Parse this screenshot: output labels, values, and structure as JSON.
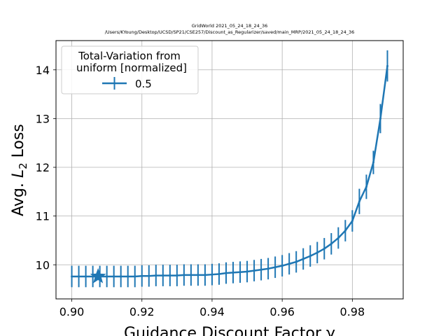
{
  "chart_data": {
    "type": "line",
    "title_lines": [
      "GridWorld  2021_05_24_18_24_36",
      "/Users/KYoung/Desktop/UCSD/SP21/CSE257/Discount_as_Regularizer/saved/main_MRP/2021_05_24_18_24_36"
    ],
    "xlabel": "Guidance Discount Factor γ",
    "ylabel_prefix": "Avg. ",
    "ylabel_var": "L",
    "ylabel_sub": "2",
    "ylabel_suffix": " Loss",
    "xlim": [
      0.8955,
      0.9945
    ],
    "ylim": [
      9.3,
      14.6
    ],
    "xticks": [
      0.9,
      0.92,
      0.94,
      0.96,
      0.98
    ],
    "xtick_labels": [
      "0.90",
      "0.92",
      "0.94",
      "0.96",
      "0.98"
    ],
    "yticks": [
      10,
      11,
      12,
      13,
      14
    ],
    "ytick_labels": [
      "10",
      "11",
      "12",
      "13",
      "14"
    ],
    "grid": true,
    "legend": {
      "title_line1": "Total-Variation from",
      "title_line2": "uniform [normalized]",
      "placement": "upper-left"
    },
    "series": [
      {
        "name": "0.5",
        "color": "#1f77b4",
        "x": [
          0.9,
          0.902,
          0.904,
          0.906,
          0.908,
          0.91,
          0.912,
          0.914,
          0.916,
          0.918,
          0.92,
          0.922,
          0.924,
          0.926,
          0.928,
          0.93,
          0.932,
          0.934,
          0.936,
          0.938,
          0.94,
          0.942,
          0.944,
          0.946,
          0.948,
          0.95,
          0.952,
          0.954,
          0.956,
          0.958,
          0.96,
          0.962,
          0.964,
          0.966,
          0.968,
          0.97,
          0.972,
          0.974,
          0.976,
          0.978,
          0.98,
          0.982,
          0.984,
          0.986,
          0.988,
          0.99
        ],
        "y": [
          9.76,
          9.76,
          9.76,
          9.76,
          9.76,
          9.76,
          9.76,
          9.76,
          9.76,
          9.76,
          9.77,
          9.77,
          9.78,
          9.78,
          9.78,
          9.78,
          9.79,
          9.79,
          9.79,
          9.79,
          9.8,
          9.81,
          9.83,
          9.84,
          9.85,
          9.86,
          9.88,
          9.9,
          9.92,
          9.95,
          9.98,
          10.02,
          10.06,
          10.12,
          10.18,
          10.25,
          10.33,
          10.43,
          10.55,
          10.7,
          10.9,
          11.3,
          11.6,
          12.1,
          13.0,
          14.08
        ],
        "err": [
          0.22,
          0.22,
          0.22,
          0.22,
          0.22,
          0.22,
          0.22,
          0.22,
          0.22,
          0.22,
          0.22,
          0.22,
          0.22,
          0.22,
          0.22,
          0.22,
          0.22,
          0.22,
          0.22,
          0.22,
          0.22,
          0.22,
          0.22,
          0.22,
          0.22,
          0.22,
          0.22,
          0.22,
          0.22,
          0.22,
          0.22,
          0.22,
          0.22,
          0.22,
          0.22,
          0.22,
          0.22,
          0.22,
          0.22,
          0.22,
          0.22,
          0.26,
          0.25,
          0.24,
          0.3,
          0.32
        ]
      }
    ],
    "marker_star": {
      "x": 0.9075,
      "y": 9.76
    }
  }
}
